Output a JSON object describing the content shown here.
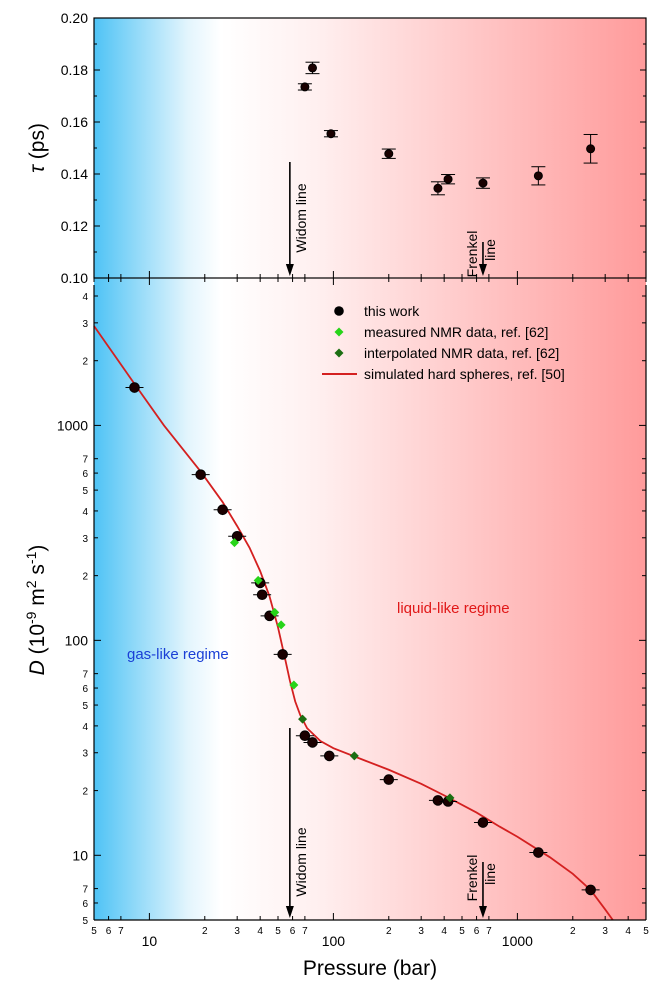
{
  "chart_data": [
    {
      "type": "scatter",
      "panel": "top",
      "ylabel_symbol": "τ",
      "ylabel_unit": "(ps)",
      "xscale": "log",
      "xlim": [
        5,
        5000
      ],
      "ylim": [
        0.1,
        0.2
      ],
      "yticks": [
        "0.10",
        "0.12",
        "0.14",
        "0.16",
        "0.18",
        "0.20"
      ],
      "series": [
        {
          "name": "this work",
          "marker": "circle",
          "color": "#000000",
          "points": [
            {
              "x": 70,
              "y": 0.1735,
              "yerr": 0.0012
            },
            {
              "x": 77,
              "y": 0.1808,
              "yerr": 0.0022
            },
            {
              "x": 97,
              "y": 0.1555,
              "yerr": 0.0012
            },
            {
              "x": 200,
              "y": 0.1478,
              "yerr": 0.0018
            },
            {
              "x": 370,
              "y": 0.1345,
              "yerr": 0.0025
            },
            {
              "x": 420,
              "y": 0.138,
              "yerr": 0.0018
            },
            {
              "x": 650,
              "y": 0.1365,
              "yerr": 0.002
            },
            {
              "x": 1300,
              "y": 0.1393,
              "yerr": 0.0035
            },
            {
              "x": 2500,
              "y": 0.1497,
              "yerr": 0.0055
            }
          ]
        }
      ],
      "annotations": [
        {
          "text": "Widom line",
          "x": 58
        },
        {
          "text_lines": [
            "Frenkel",
            "line"
          ],
          "x": 650
        }
      ]
    },
    {
      "type": "scatter",
      "panel": "bottom",
      "xlabel": "Pressure (bar)",
      "ylabel_symbol": "D",
      "ylabel_unit": "(10",
      "ylabel_exp1": "-9",
      "ylabel_mid": " m",
      "ylabel_exp2": "2",
      "ylabel_s": " s",
      "ylabel_exp3": "-1",
      "ylabel_close": ")",
      "xscale": "log",
      "yscale": "log",
      "xlim": [
        5,
        5000
      ],
      "ylim": [
        5,
        4500
      ],
      "x_major_ticks": [
        {
          "v": 10,
          "label": "10"
        },
        {
          "v": 100,
          "label": "100"
        },
        {
          "v": 1000,
          "label": "1000"
        }
      ],
      "x_minor_ticks": [
        {
          "v": 5,
          "label": "5"
        },
        {
          "v": 6,
          "label": "6"
        },
        {
          "v": 7,
          "label": "7"
        },
        {
          "v": 20,
          "label": "2"
        },
        {
          "v": 30,
          "label": "3"
        },
        {
          "v": 40,
          "label": "4"
        },
        {
          "v": 50,
          "label": "5"
        },
        {
          "v": 60,
          "label": "6"
        },
        {
          "v": 70,
          "label": "7"
        },
        {
          "v": 200,
          "label": "2"
        },
        {
          "v": 300,
          "label": "3"
        },
        {
          "v": 400,
          "label": "4"
        },
        {
          "v": 500,
          "label": "5"
        },
        {
          "v": 600,
          "label": "6"
        },
        {
          "v": 700,
          "label": "7"
        },
        {
          "v": 2000,
          "label": "2"
        },
        {
          "v": 3000,
          "label": "3"
        },
        {
          "v": 4000,
          "label": "4"
        },
        {
          "v": 5000,
          "label": "5"
        }
      ],
      "y_major_ticks": [
        {
          "v": 10,
          "label": "10"
        },
        {
          "v": 100,
          "label": "100"
        },
        {
          "v": 1000,
          "label": "1000"
        }
      ],
      "y_minor_ticks": [
        {
          "v": 5,
          "label": "5"
        },
        {
          "v": 6,
          "label": "6"
        },
        {
          "v": 7,
          "label": "7"
        },
        {
          "v": 20,
          "label": "2"
        },
        {
          "v": 30,
          "label": "3"
        },
        {
          "v": 40,
          "label": "4"
        },
        {
          "v": 50,
          "label": "5"
        },
        {
          "v": 60,
          "label": "6"
        },
        {
          "v": 70,
          "label": "7"
        },
        {
          "v": 200,
          "label": "2"
        },
        {
          "v": 300,
          "label": "3"
        },
        {
          "v": 400,
          "label": "4"
        },
        {
          "v": 500,
          "label": "5"
        },
        {
          "v": 600,
          "label": "6"
        },
        {
          "v": 700,
          "label": "7"
        },
        {
          "v": 2000,
          "label": "2"
        },
        {
          "v": 3000,
          "label": "3"
        },
        {
          "v": 4000,
          "label": "4"
        }
      ],
      "series": [
        {
          "name": "this work",
          "marker": "circle",
          "color": "#000000",
          "points": [
            {
              "x": 8.3,
              "y": 1500
            },
            {
              "x": 19,
              "y": 590
            },
            {
              "x": 25,
              "y": 405
            },
            {
              "x": 30,
              "y": 305
            },
            {
              "x": 40,
              "y": 185
            },
            {
              "x": 41,
              "y": 163
            },
            {
              "x": 45,
              "y": 130
            },
            {
              "x": 53,
              "y": 86
            },
            {
              "x": 70,
              "y": 36
            },
            {
              "x": 77,
              "y": 33.5
            },
            {
              "x": 95,
              "y": 29
            },
            {
              "x": 200,
              "y": 22.5
            },
            {
              "x": 370,
              "y": 18
            },
            {
              "x": 420,
              "y": 17.8
            },
            {
              "x": 650,
              "y": 14.2
            },
            {
              "x": 1300,
              "y": 10.3
            },
            {
              "x": 2500,
              "y": 6.9
            }
          ]
        },
        {
          "name": "measured NMR data, ref. [62]",
          "marker": "diamond",
          "color": "#27d419",
          "points": [
            {
              "x": 29,
              "y": 285
            },
            {
              "x": 39,
              "y": 190
            },
            {
              "x": 48,
              "y": 135
            },
            {
              "x": 52,
              "y": 118
            },
            {
              "x": 61,
              "y": 62
            }
          ]
        },
        {
          "name": "interpolated NMR data, ref. [62]",
          "marker": "diamond",
          "color": "#1c6e12",
          "points": [
            {
              "x": 68,
              "y": 43
            },
            {
              "x": 130,
              "y": 29
            },
            {
              "x": 430,
              "y": 18.5
            }
          ]
        },
        {
          "name": "simulated hard spheres, ref. [50]",
          "marker": "line",
          "color": "#d42020",
          "points": [
            {
              "x": 5,
              "y": 2900
            },
            {
              "x": 8.3,
              "y": 1560
            },
            {
              "x": 12,
              "y": 1000
            },
            {
              "x": 19,
              "y": 610
            },
            {
              "x": 25,
              "y": 440
            },
            {
              "x": 30,
              "y": 340
            },
            {
              "x": 35,
              "y": 270
            },
            {
              "x": 40,
              "y": 210
            },
            {
              "x": 45,
              "y": 160
            },
            {
              "x": 50,
              "y": 115
            },
            {
              "x": 55,
              "y": 80
            },
            {
              "x": 58,
              "y": 65
            },
            {
              "x": 62,
              "y": 52
            },
            {
              "x": 66,
              "y": 45
            },
            {
              "x": 72,
              "y": 39
            },
            {
              "x": 85,
              "y": 34
            },
            {
              "x": 100,
              "y": 31.5
            },
            {
              "x": 150,
              "y": 27.5
            },
            {
              "x": 200,
              "y": 25
            },
            {
              "x": 300,
              "y": 21.5
            },
            {
              "x": 400,
              "y": 19
            },
            {
              "x": 600,
              "y": 15.8
            },
            {
              "x": 800,
              "y": 13.6
            },
            {
              "x": 1000,
              "y": 12.2
            },
            {
              "x": 1500,
              "y": 9.8
            },
            {
              "x": 2000,
              "y": 8.2
            },
            {
              "x": 2500,
              "y": 6.9
            },
            {
              "x": 3000,
              "y": 5.6
            },
            {
              "x": 3300,
              "y": 5.0
            }
          ]
        }
      ],
      "annotations": [
        {
          "text": "Widom line",
          "x": 58
        },
        {
          "text_lines": [
            "Frenkel",
            "line"
          ],
          "x": 650
        },
        {
          "text": "gas-like regime",
          "color": "#1a3fd6"
        },
        {
          "text": "liquid-like regime",
          "color": "#e01818"
        }
      ],
      "legend_position": "top-right"
    }
  ]
}
